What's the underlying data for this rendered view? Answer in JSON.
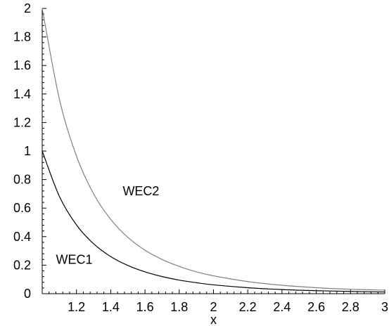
{
  "chart_data": {
    "type": "line",
    "title": "",
    "xlabel": "x",
    "ylabel": "",
    "xlim": [
      1,
      3
    ],
    "ylim": [
      0,
      2
    ],
    "grid": false,
    "x_ticks": [
      {
        "value": 1.2,
        "label": "1.2"
      },
      {
        "value": 1.4,
        "label": "1.4"
      },
      {
        "value": 1.6,
        "label": "1.6"
      },
      {
        "value": 1.8,
        "label": "1.8"
      },
      {
        "value": 2.0,
        "label": "2"
      },
      {
        "value": 2.2,
        "label": "2.2"
      },
      {
        "value": 2.4,
        "label": "2.4"
      },
      {
        "value": 2.6,
        "label": "2.6"
      },
      {
        "value": 2.8,
        "label": "2.8"
      },
      {
        "value": 3.0,
        "label": "3"
      }
    ],
    "y_ticks": [
      {
        "value": 0,
        "label": "0"
      },
      {
        "value": 0.2,
        "label": "0.2"
      },
      {
        "value": 0.4,
        "label": "0.4"
      },
      {
        "value": 0.6,
        "label": "0.6"
      },
      {
        "value": 0.8,
        "label": "0.8"
      },
      {
        "value": 1.0,
        "label": "1"
      },
      {
        "value": 1.2,
        "label": "1.2"
      },
      {
        "value": 1.4,
        "label": "1.4"
      },
      {
        "value": 1.6,
        "label": "1.6"
      },
      {
        "value": 1.8,
        "label": "1.8"
      },
      {
        "value": 2.0,
        "label": "2"
      }
    ],
    "series": [
      {
        "name": "WEC1",
        "color": "#000000",
        "x": [
          1.0,
          1.1,
          1.2,
          1.3,
          1.4,
          1.5,
          1.6,
          1.7,
          1.8,
          1.9,
          2.0,
          2.2,
          2.4,
          2.6,
          2.8,
          3.0
        ],
        "y": [
          1.0,
          0.683,
          0.482,
          0.35,
          0.26,
          0.198,
          0.153,
          0.12,
          0.095,
          0.077,
          0.062,
          0.042,
          0.029,
          0.021,
          0.016,
          0.012
        ]
      },
      {
        "name": "WEC2",
        "color": "#808080",
        "x": [
          1.0,
          1.1,
          1.2,
          1.3,
          1.4,
          1.5,
          1.6,
          1.7,
          1.8,
          1.9,
          2.0,
          2.2,
          2.4,
          2.6,
          2.8,
          3.0
        ],
        "y": [
          2.0,
          1.366,
          0.965,
          0.7,
          0.521,
          0.395,
          0.305,
          0.24,
          0.191,
          0.153,
          0.125,
          0.085,
          0.059,
          0.042,
          0.031,
          0.025
        ]
      }
    ],
    "annotations": [
      {
        "text": "WEC1",
        "series": "WEC1"
      },
      {
        "text": "WEC2",
        "series": "WEC2"
      }
    ]
  }
}
